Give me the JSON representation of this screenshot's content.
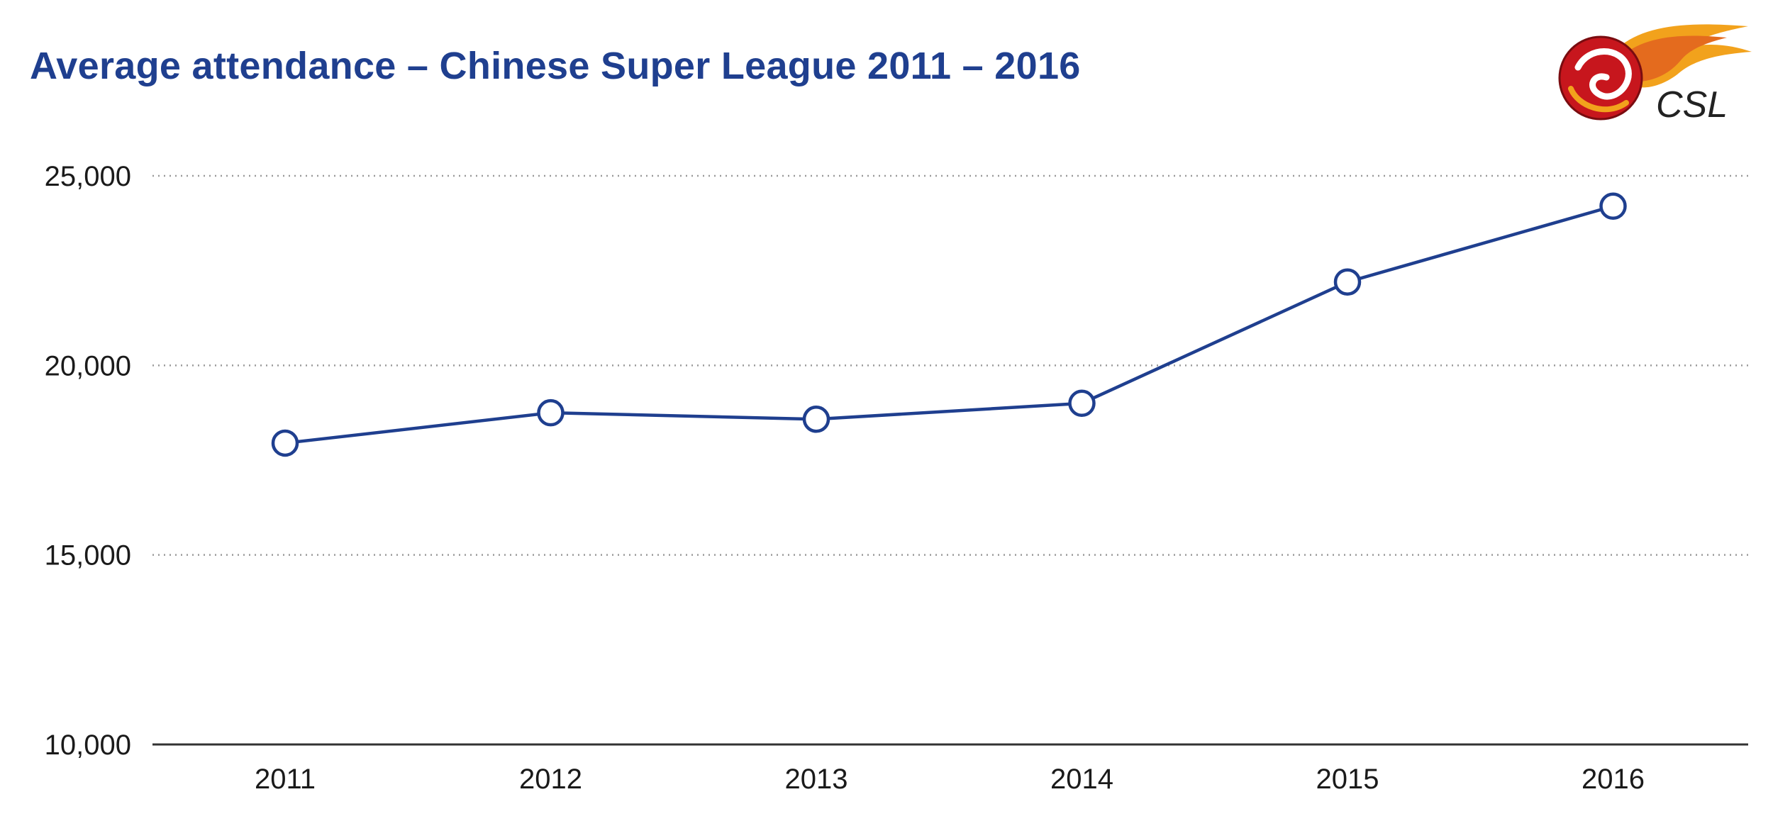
{
  "chart_data": {
    "type": "line",
    "title": "Average attendance – Chinese Super League 2011 – 2016",
    "xlabel": "",
    "ylabel": "",
    "categories": [
      "2011",
      "2012",
      "2013",
      "2014",
      "2015",
      "2016"
    ],
    "series": [
      {
        "values": [
          17950,
          18750,
          18580,
          19000,
          22200,
          24200
        ]
      }
    ],
    "ylim": [
      10000,
      25000
    ],
    "yticks": [
      10000,
      15000,
      20000,
      25000
    ],
    "ytick_labels": [
      "10,000",
      "15,000",
      "20,000",
      "25,000"
    ],
    "grid": true,
    "grid_style": "dotted",
    "colors": {
      "title": "#1f3f8f",
      "line": "#1f3f8f",
      "marker_fill": "#ffffff",
      "axis": "#333333",
      "grid": "#9a9a9a"
    },
    "legend": "none"
  },
  "logo": {
    "text": "CSL",
    "icon": "csl-flame-ball-logo"
  }
}
